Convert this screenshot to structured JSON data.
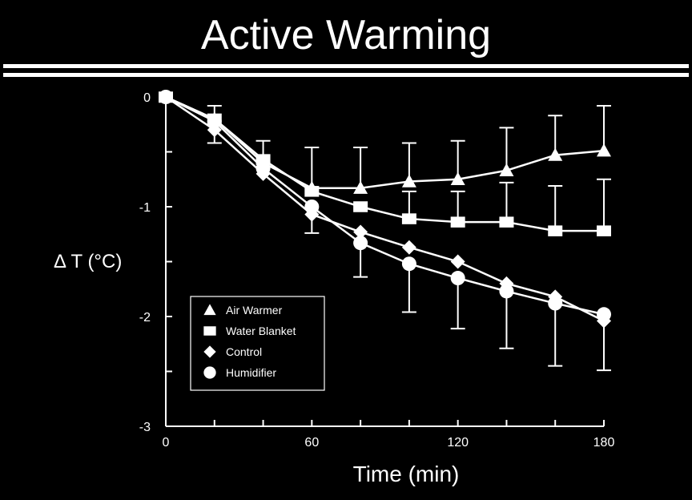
{
  "title": "Active Warming",
  "chart_data": {
    "type": "line",
    "title": "Active Warming",
    "xlabel": "Time (min)",
    "ylabel": "∆ T (°C)",
    "xlim": [
      0,
      180
    ],
    "ylim": [
      -3,
      0
    ],
    "xticks": [
      0,
      60,
      120,
      180
    ],
    "xtick_labels": [
      "0",
      "60",
      "120",
      "180"
    ],
    "yticks": [
      0,
      -1,
      -2,
      -3
    ],
    "ytick_labels": [
      "0",
      "-1",
      "-2",
      "-3"
    ],
    "minor_step_x": 20,
    "minor_step_y": 0.5,
    "grid": false,
    "legend_position": "bottom-left",
    "series": [
      {
        "name": "Air Warmer",
        "marker": "triangle",
        "x": [
          0,
          20,
          40,
          60,
          80,
          100,
          120,
          140,
          160,
          180
        ],
        "y": [
          0,
          -0.2,
          -0.6,
          -0.83,
          -0.83,
          -0.77,
          -0.75,
          -0.67,
          -0.53,
          -0.49
        ],
        "err_upper": [
          null,
          null,
          null,
          -0.46,
          -0.46,
          -0.42,
          -0.4,
          -0.28,
          -0.17,
          -0.08
        ],
        "err_lower": [
          null,
          null,
          null,
          null,
          null,
          null,
          null,
          null,
          null,
          null
        ]
      },
      {
        "name": "Water Blanket",
        "marker": "square",
        "x": [
          0,
          20,
          40,
          60,
          80,
          100,
          120,
          140,
          160,
          180
        ],
        "y": [
          0,
          -0.2,
          -0.57,
          -0.86,
          -1.0,
          -1.11,
          -1.14,
          -1.14,
          -1.22,
          -1.22
        ],
        "err_upper": [
          null,
          -0.08,
          -0.4,
          null,
          null,
          -0.86,
          -0.86,
          -0.78,
          -0.81,
          -0.75
        ],
        "err_lower": [
          null,
          null,
          null,
          null,
          null,
          null,
          null,
          null,
          null,
          null
        ]
      },
      {
        "name": "Control",
        "marker": "diamond",
        "x": [
          0,
          20,
          40,
          60,
          80,
          100,
          120,
          140,
          160,
          180
        ],
        "y": [
          0,
          -0.3,
          -0.7,
          -1.07,
          -1.23,
          -1.37,
          -1.5,
          -1.7,
          -1.82,
          -2.04
        ],
        "err_upper": [
          null,
          null,
          null,
          null,
          null,
          null,
          null,
          null,
          null,
          null
        ],
        "err_lower": [
          null,
          -0.42,
          null,
          -1.24,
          null,
          null,
          null,
          null,
          null,
          null
        ]
      },
      {
        "name": "Humidifier",
        "marker": "circle",
        "x": [
          0,
          20,
          40,
          60,
          80,
          100,
          120,
          140,
          160,
          180
        ],
        "y": [
          0,
          -0.22,
          -0.65,
          -1.0,
          -1.33,
          -1.52,
          -1.65,
          -1.77,
          -1.88,
          -1.98
        ],
        "err_upper": [
          null,
          null,
          null,
          null,
          null,
          null,
          null,
          null,
          null,
          null
        ],
        "err_lower": [
          null,
          null,
          null,
          null,
          -1.64,
          -1.96,
          -2.11,
          -2.29,
          -2.45,
          -2.49
        ]
      }
    ]
  }
}
